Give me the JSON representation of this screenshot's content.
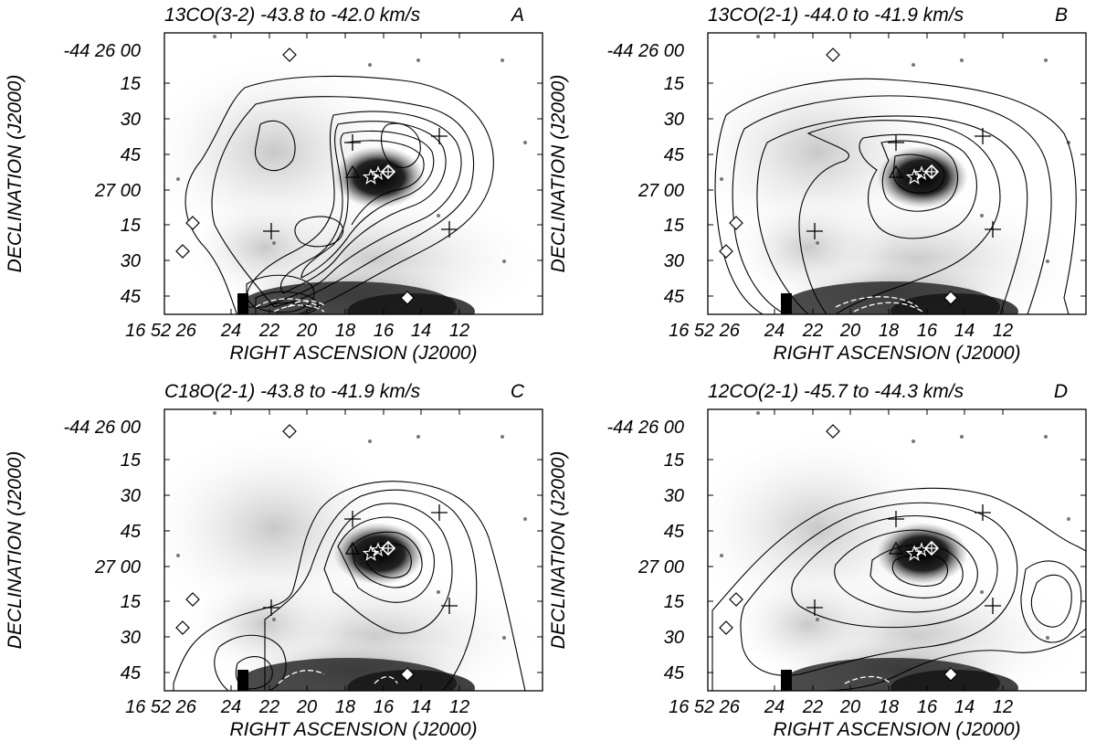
{
  "figure": {
    "panels": [
      {
        "id": "A",
        "title": "13CO(3-2) -43.8 to -42.0 km/s",
        "letter": "A",
        "ra_label": "RIGHT ASCENSION (J2000)",
        "dec_label": "DECLINATION (J2000)",
        "ra_first_tick": "16 52 26",
        "ra_ticks": [
          "24",
          "22",
          "20",
          "18",
          "16",
          "14",
          "12"
        ],
        "dec_first_tick": "-44 26 00",
        "dec_ticks": [
          "15",
          "30",
          "45",
          "27 00",
          "15",
          "30",
          "45"
        ]
      },
      {
        "id": "B",
        "title": "13CO(2-1) -44.0 to -41.9 km/s",
        "letter": "B",
        "ra_label": "RIGHT ASCENSION (J2000)",
        "dec_label": "DECLINATION (J2000)",
        "ra_first_tick": "16 52 26",
        "ra_ticks": [
          "24",
          "22",
          "20",
          "18",
          "16",
          "14",
          "12"
        ],
        "dec_first_tick": "-44 26 00",
        "dec_ticks": [
          "15",
          "30",
          "45",
          "27 00",
          "15",
          "30",
          "45"
        ]
      },
      {
        "id": "C",
        "title": "C18O(2-1) -43.8 to -41.9 km/s",
        "letter": "C",
        "ra_label": "RIGHT ASCENSION (J2000)",
        "dec_label": "DECLINATION (J2000)",
        "ra_first_tick": "16 52 26",
        "ra_ticks": [
          "24",
          "22",
          "20",
          "18",
          "16",
          "14",
          "12"
        ],
        "dec_first_tick": "-44 26 00",
        "dec_ticks": [
          "15",
          "30",
          "45",
          "27 00",
          "15",
          "30",
          "45"
        ]
      },
      {
        "id": "D",
        "title": "12CO(2-1) -45.7 to -44.3 km/s",
        "letter": "D",
        "ra_label": "RIGHT ASCENSION (J2000)",
        "dec_label": "DECLINATION (J2000)",
        "ra_first_tick": "16 52 26",
        "ra_ticks": [
          "24",
          "22",
          "20",
          "18",
          "16",
          "14",
          "12"
        ],
        "dec_first_tick": "-44 26 00",
        "dec_ticks": [
          "15",
          "30",
          "45",
          "27 00",
          "15",
          "30",
          "45"
        ]
      }
    ],
    "markers": [
      "cross-marker",
      "diamond-marker",
      "triangle-marker",
      "star-marker"
    ]
  }
}
